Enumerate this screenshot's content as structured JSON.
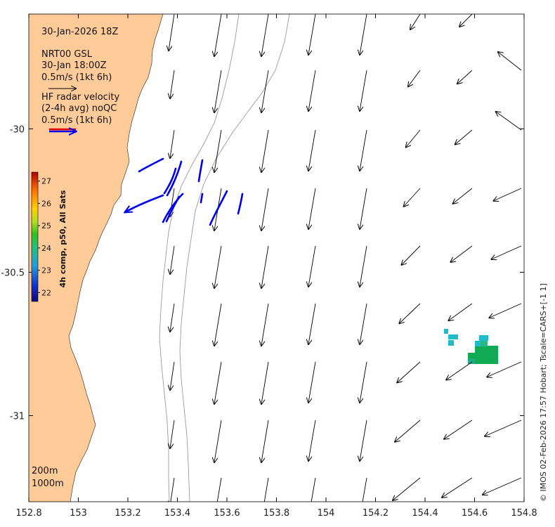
{
  "plot": {
    "xlim": [
      152.8,
      154.8
    ],
    "ylim": [
      -31.3,
      -29.6
    ],
    "x_ticks": [
      152.8,
      153.0,
      153.2,
      153.4,
      153.6,
      153.8,
      154.0,
      154.2,
      154.4,
      154.6,
      154.8
    ],
    "x_tick_labels": [
      "152.8",
      "153",
      "153.2",
      "153.4",
      "153.6",
      "153.8",
      "154",
      "154.2",
      "154.4",
      "154.6",
      "154.8"
    ],
    "y_ticks": [
      -30.0,
      -30.5,
      -31.0
    ],
    "y_tick_labels": [
      "-30",
      "-30.5",
      "-31"
    ]
  },
  "annotations": {
    "datetime": "30-Jan-2026 18Z",
    "model_line1": "NRT00 GSL",
    "model_line2": "30-Jan 18:00Z",
    "model_scale": "0.5m/s (1kt 6h)",
    "radar_line1": "HF radar velocity",
    "radar_line2": "(2-4h avg) noQC",
    "radar_scale": "0.5m/s (1kt 6h)",
    "contour_200": "200m",
    "contour_1000": "1000m",
    "credit": "© IMOS 02-Feb-2026 17:57 Hobart; Tscale=CARS+[-1 1]"
  },
  "colorbar": {
    "title": "4h comp, p50, All Sats",
    "ticks": [
      "22",
      "23",
      "24",
      "25",
      "26",
      "27"
    ],
    "range": [
      21.6,
      27.4
    ]
  },
  "colors": {
    "land": "#ffcc99",
    "radar_vectors": "#0000ee",
    "model_vectors": "#000000",
    "bathymetry": "#9a9a9a",
    "sst_green": "#11aa55",
    "sst_cyan": "#22bbcc"
  },
  "chart_data": {
    "type": "map",
    "title": "30-Jan-2026 18Z",
    "xlabel": "",
    "ylabel": "",
    "model_velocity_grid": {
      "lons": [
        153.0,
        153.18,
        153.36,
        153.54,
        153.72,
        153.9,
        154.08,
        154.26,
        154.44,
        154.62,
        154.8
      ],
      "lats": [
        -29.66,
        -29.82,
        -29.98,
        -30.14,
        -30.3,
        -30.46,
        -30.62,
        -30.78,
        -30.94,
        -31.1,
        -31.26
      ],
      "note_units": "m/s"
    },
    "hf_radar_vectors": [
      {
        "lon": 153.33,
        "lat": -30.1,
        "u": -0.25,
        "v": -0.08
      },
      {
        "lon": 153.26,
        "lat": -30.07,
        "u": -0.12,
        "v": -0.05
      },
      {
        "lon": 153.41,
        "lat": -30.11,
        "u": -0.05,
        "v": -0.35
      },
      {
        "lon": 153.49,
        "lat": -30.1,
        "u": -0.02,
        "v": -0.3
      },
      {
        "lon": 153.42,
        "lat": -30.22,
        "u": -0.12,
        "v": -0.25
      },
      {
        "lon": 153.36,
        "lat": -30.21,
        "u": -0.55,
        "v": -0.2
      },
      {
        "lon": 153.56,
        "lat": -30.2,
        "u": -0.1,
        "v": -0.3
      },
      {
        "lon": 153.63,
        "lat": -30.22,
        "u": -0.03,
        "v": -0.25
      },
      {
        "lon": 153.52,
        "lat": -30.22,
        "u": -0.03,
        "v": -0.08
      },
      {
        "lon": 153.39,
        "lat": -30.23,
        "u": -0.12,
        "v": -0.22
      }
    ],
    "sst_pixels": [
      {
        "lon": 154.49,
        "lat": -30.71,
        "value": 23.2
      },
      {
        "lon": 154.52,
        "lat": -30.73,
        "value": 23.2
      },
      {
        "lon": 154.63,
        "lat": -30.72,
        "value": 23.1
      },
      {
        "lon": 154.61,
        "lat": -30.74,
        "value": 23.1
      },
      {
        "lon": 154.64,
        "lat": -30.78,
        "value": 24.1
      },
      {
        "lon": 154.67,
        "lat": -30.78,
        "value": 24.0
      },
      {
        "lon": 154.63,
        "lat": -30.8,
        "value": 24.0
      },
      {
        "lon": 154.6,
        "lat": -30.8,
        "value": 24.1
      }
    ]
  }
}
